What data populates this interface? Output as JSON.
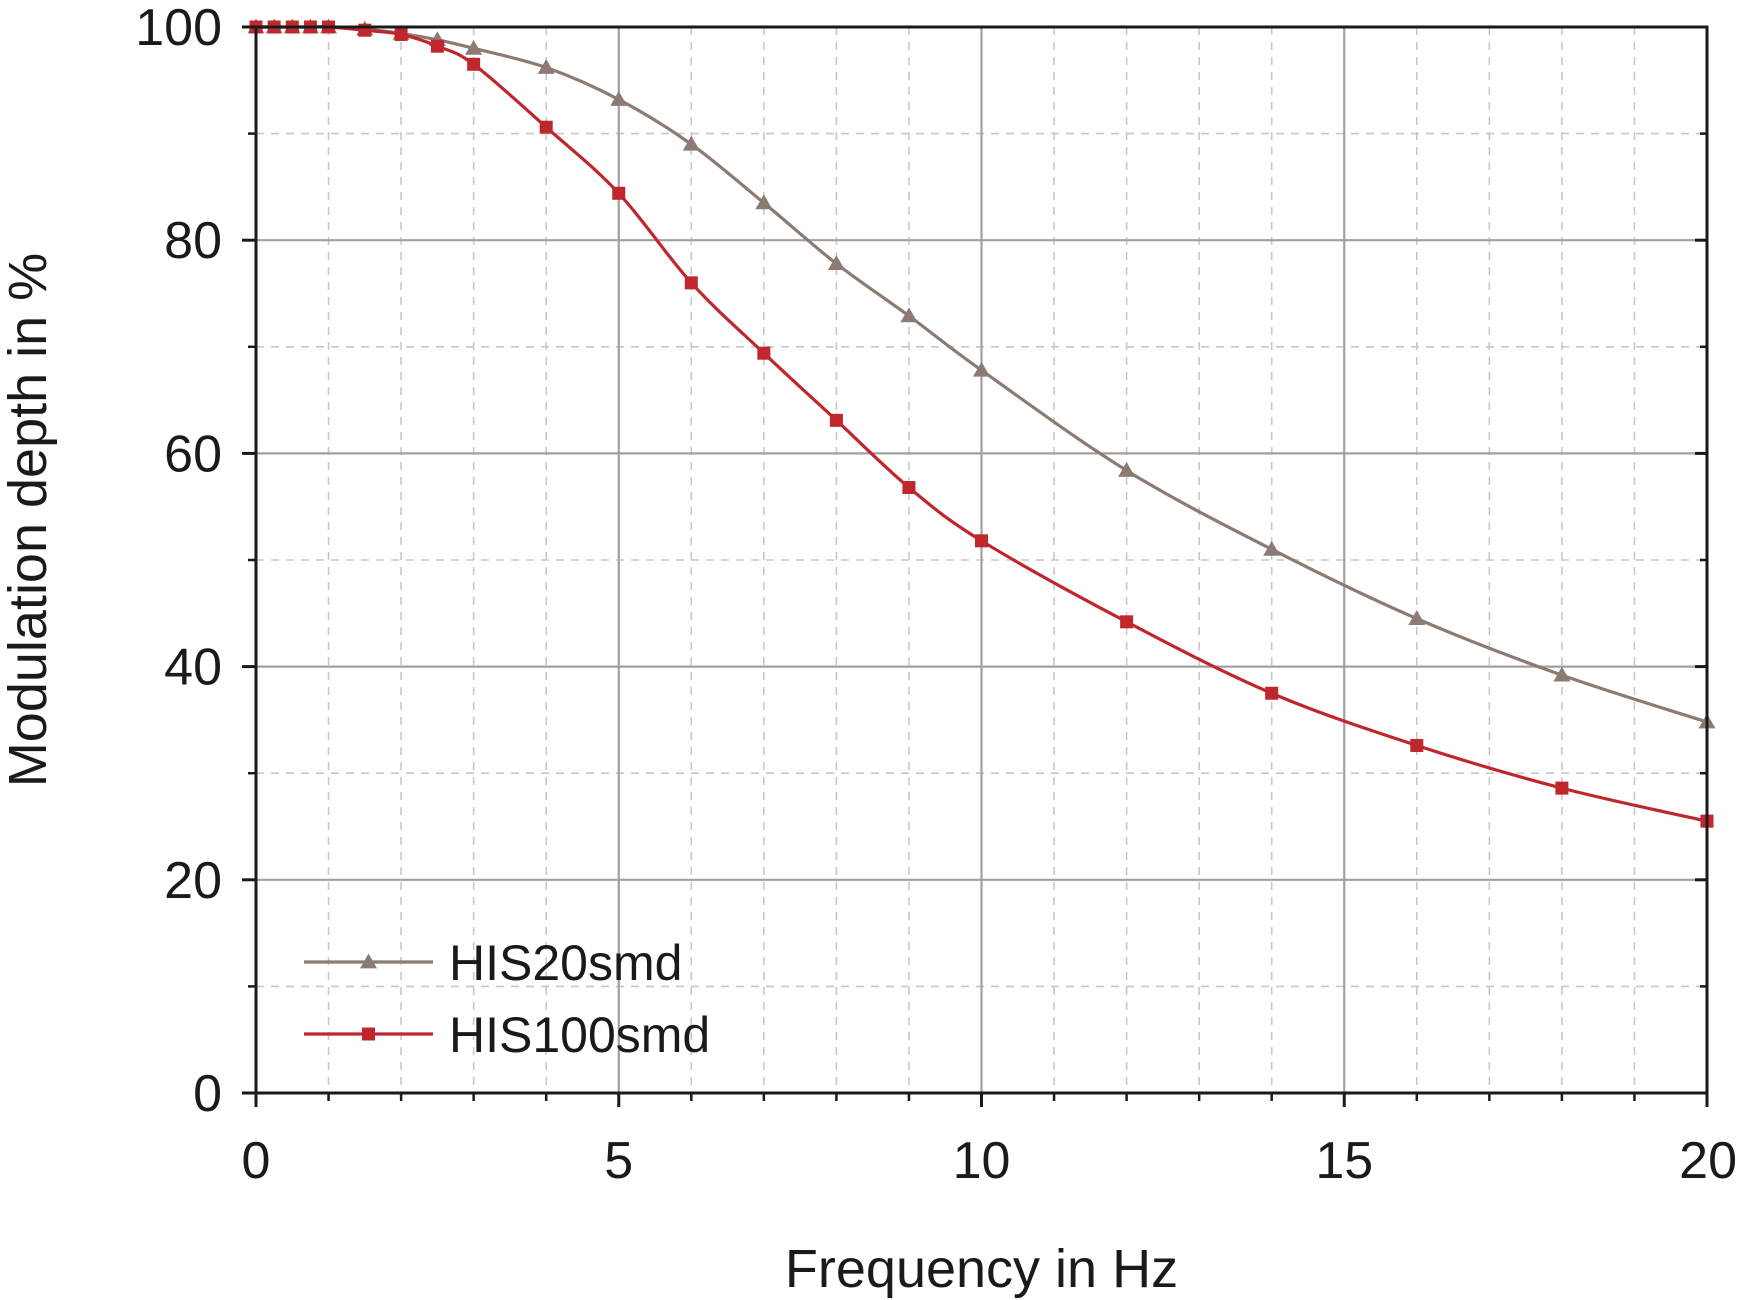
{
  "chart_data": {
    "type": "line",
    "title": "",
    "xlabel": "Frequency in Hz",
    "ylabel": "Modulation depth in %",
    "xlim": [
      0,
      20
    ],
    "ylim": [
      0,
      100
    ],
    "x_ticks": [
      0,
      5,
      10,
      15,
      20
    ],
    "x_tick_labels": [
      "0",
      "5",
      "10",
      "15",
      "20"
    ],
    "y_ticks": [
      0,
      20,
      40,
      60,
      80,
      100
    ],
    "y_tick_labels": [
      "0",
      "20",
      "40",
      "60",
      "80",
      "100"
    ],
    "grid": true,
    "legend_position": "bottom-left",
    "series": [
      {
        "name": "HIS20smd",
        "color": "#8c7b73",
        "marker": "triangle",
        "x": [
          0,
          0.25,
          0.5,
          0.75,
          1,
          1.5,
          2,
          2.5,
          3,
          4,
          5,
          6,
          7,
          8,
          9,
          10,
          12,
          14,
          16,
          18,
          20
        ],
        "y": [
          100,
          100,
          100,
          100,
          100,
          99.8,
          99.4,
          98.8,
          98.0,
          96.2,
          93.2,
          89.0,
          83.5,
          77.8,
          72.9,
          67.8,
          58.4,
          51.0,
          44.5,
          39.2,
          34.8
        ]
      },
      {
        "name": "HIS100smd",
        "color": "#c0272d",
        "marker": "square",
        "x": [
          0,
          0.25,
          0.5,
          0.75,
          1,
          1.5,
          2,
          2.5,
          3,
          4,
          5,
          6,
          7,
          8,
          9,
          10,
          12,
          14,
          16,
          18,
          20
        ],
        "y": [
          100,
          100,
          100,
          100,
          100,
          99.7,
          99.3,
          98.2,
          96.5,
          90.6,
          84.4,
          76.0,
          69.4,
          63.1,
          56.8,
          51.8,
          44.2,
          37.5,
          32.6,
          28.6,
          25.5
        ]
      }
    ]
  }
}
